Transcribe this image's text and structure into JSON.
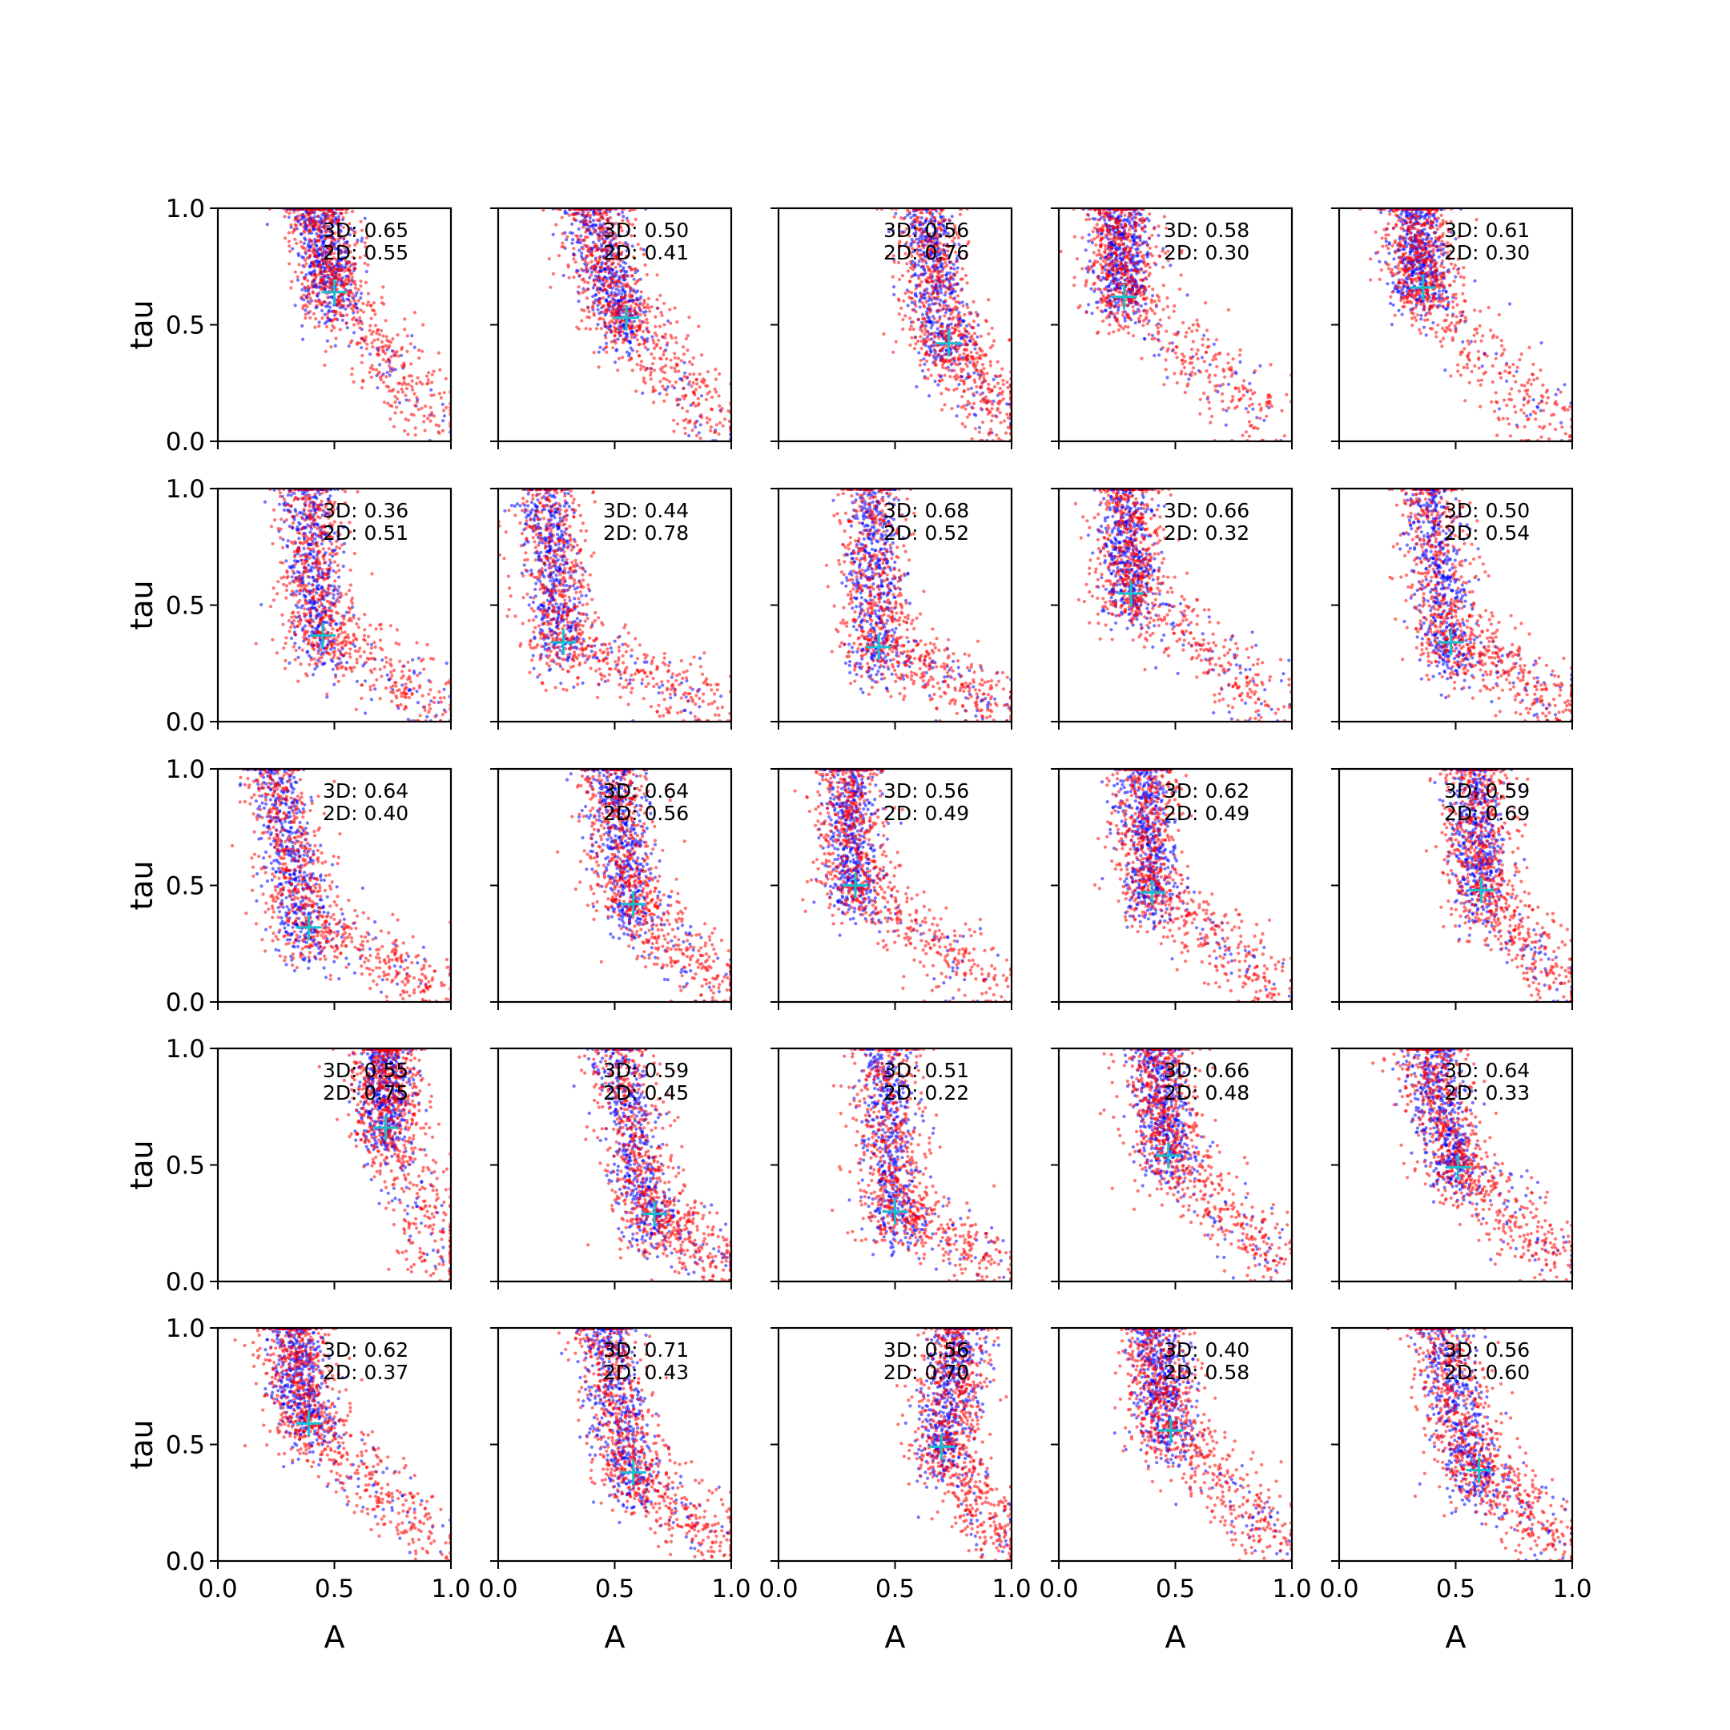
{
  "chart_data": {
    "type": "scatter",
    "grid": false,
    "layout": {
      "rows": 5,
      "cols": 5
    },
    "xlabel": "A",
    "ylabel": "tau",
    "xlim": [
      0.0,
      1.0
    ],
    "ylim": [
      0.0,
      1.0
    ],
    "xticks": [
      "0.0",
      "0.5",
      "1.0"
    ],
    "yticks": [
      "0.0",
      "0.5",
      "1.0"
    ],
    "series_colors": {
      "blue": "#0000ff",
      "red": "#ff0000",
      "marker": "#17becf"
    },
    "panels": [
      {
        "label_3d": "3D: 0.65",
        "label_2d": "2D: 0.55",
        "marker": [
          0.5,
          0.64
        ],
        "cluster": [
          0.42,
          0.78
        ]
      },
      {
        "label_3d": "3D: 0.50",
        "label_2d": "2D: 0.41",
        "marker": [
          0.55,
          0.53
        ],
        "cluster": [
          0.38,
          0.85
        ]
      },
      {
        "label_3d": "3D: 0.56",
        "label_2d": "2D: 0.76",
        "marker": [
          0.73,
          0.42
        ],
        "cluster": [
          0.62,
          0.62
        ]
      },
      {
        "label_3d": "3D: 0.58",
        "label_2d": "2D: 0.30",
        "marker": [
          0.28,
          0.62
        ],
        "cluster": [
          0.26,
          0.78
        ]
      },
      {
        "label_3d": "3D: 0.61",
        "label_2d": "2D: 0.30",
        "marker": [
          0.36,
          0.66
        ],
        "cluster": [
          0.32,
          0.8
        ]
      },
      {
        "label_3d": "3D: 0.36",
        "label_2d": "2D: 0.51",
        "marker": [
          0.45,
          0.37
        ],
        "cluster": [
          0.38,
          0.78
        ]
      },
      {
        "label_3d": "3D: 0.44",
        "label_2d": "2D: 0.78",
        "marker": [
          0.28,
          0.34
        ],
        "cluster": [
          0.2,
          0.55
        ]
      },
      {
        "label_3d": "3D: 0.68",
        "label_2d": "2D: 0.52",
        "marker": [
          0.43,
          0.32
        ],
        "cluster": [
          0.4,
          0.55
        ]
      },
      {
        "label_3d": "3D: 0.66",
        "label_2d": "2D: 0.32",
        "marker": [
          0.31,
          0.55
        ],
        "cluster": [
          0.29,
          0.72
        ]
      },
      {
        "label_3d": "3D: 0.50",
        "label_2d": "2D: 0.54",
        "marker": [
          0.48,
          0.34
        ],
        "cluster": [
          0.38,
          0.62
        ]
      },
      {
        "label_3d": "3D: 0.64",
        "label_2d": "2D: 0.40",
        "marker": [
          0.39,
          0.32
        ],
        "cluster": [
          0.24,
          0.7
        ]
      },
      {
        "label_3d": "3D: 0.64",
        "label_2d": "2D: 0.56",
        "marker": [
          0.58,
          0.42
        ],
        "cluster": [
          0.48,
          0.72
        ]
      },
      {
        "label_3d": "3D: 0.56",
        "label_2d": "2D: 0.49",
        "marker": [
          0.33,
          0.5
        ],
        "cluster": [
          0.3,
          0.72
        ]
      },
      {
        "label_3d": "3D: 0.62",
        "label_2d": "2D: 0.49",
        "marker": [
          0.4,
          0.47
        ],
        "cluster": [
          0.36,
          0.68
        ]
      },
      {
        "label_3d": "3D: 0.59",
        "label_2d": "2D: 0.69",
        "marker": [
          0.61,
          0.48
        ],
        "cluster": [
          0.58,
          0.7
        ]
      },
      {
        "label_3d": "3D: 0.55",
        "label_2d": "2D: 0.75",
        "marker": [
          0.72,
          0.66
        ],
        "cluster": [
          0.72,
          0.75
        ]
      },
      {
        "label_3d": "3D: 0.59",
        "label_2d": "2D: 0.45",
        "marker": [
          0.67,
          0.29
        ],
        "cluster": [
          0.5,
          0.6
        ]
      },
      {
        "label_3d": "3D: 0.51",
        "label_2d": "2D: 0.22",
        "marker": [
          0.5,
          0.3
        ],
        "cluster": [
          0.45,
          0.55
        ]
      },
      {
        "label_3d": "3D: 0.66",
        "label_2d": "2D: 0.48",
        "marker": [
          0.47,
          0.54
        ],
        "cluster": [
          0.42,
          0.75
        ]
      },
      {
        "label_3d": "3D: 0.64",
        "label_2d": "2D: 0.33",
        "marker": [
          0.51,
          0.49
        ],
        "cluster": [
          0.38,
          0.75
        ]
      },
      {
        "label_3d": "3D: 0.62",
        "label_2d": "2D: 0.37",
        "marker": [
          0.39,
          0.59
        ],
        "cluster": [
          0.32,
          0.75
        ]
      },
      {
        "label_3d": "3D: 0.71",
        "label_2d": "2D: 0.43",
        "marker": [
          0.58,
          0.38
        ],
        "cluster": [
          0.45,
          0.62
        ]
      },
      {
        "label_3d": "3D: 0.56",
        "label_2d": "2D: 0.70",
        "marker": [
          0.7,
          0.49
        ],
        "cluster": [
          0.78,
          0.72
        ]
      },
      {
        "label_3d": "3D: 0.40",
        "label_2d": "2D: 0.58",
        "marker": [
          0.48,
          0.56
        ],
        "cluster": [
          0.4,
          0.68
        ]
      },
      {
        "label_3d": "3D: 0.56",
        "label_2d": "2D: 0.60",
        "marker": [
          0.6,
          0.39
        ],
        "cluster": [
          0.42,
          0.75
        ]
      }
    ]
  }
}
